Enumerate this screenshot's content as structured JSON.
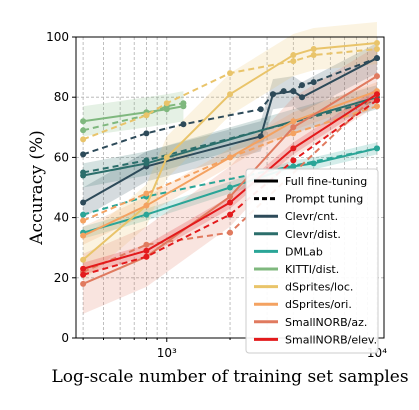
{
  "chart_data": {
    "type": "line",
    "title": "",
    "xlabel": "Log-scale number of training set samples",
    "ylabel": "Accuracy (%)",
    "x_scale": "log",
    "xlim": [
      370,
      10800
    ],
    "ylim": [
      0,
      100
    ],
    "x_ticks": [
      {
        "value": 1000,
        "label": "10³"
      },
      {
        "value": 10000,
        "label": "10⁴"
      }
    ],
    "y_ticks": [
      0,
      20,
      40,
      60,
      80,
      100
    ],
    "grid": true,
    "legend_position": "lower-right",
    "line_styles": [
      {
        "name": "Full fine-tuning",
        "dash": "solid"
      },
      {
        "name": "Prompt tuning",
        "dash": "dashed"
      }
    ],
    "datasets": [
      {
        "name": "Clevr/cnt.",
        "color": "#2d4a59",
        "full": {
          "x": [
            400,
            800,
            2800,
            3200,
            4000,
            4400,
            10000
          ],
          "y": [
            45,
            57,
            67,
            81,
            82,
            80,
            93
          ]
        },
        "prompt": {
          "x": [
            400,
            800,
            1200,
            2800,
            3200,
            3600,
            4000,
            4400,
            5000,
            10000
          ],
          "y": [
            61,
            68,
            71,
            76,
            81,
            82,
            82,
            84,
            85,
            93
          ]
        }
      },
      {
        "name": "Clevr/dist.",
        "color": "#2b6e6b",
        "full": {
          "x": [
            400,
            800,
            10000
          ],
          "y": [
            54,
            58,
            80
          ]
        },
        "prompt": {
          "x": [
            400,
            800,
            10000
          ],
          "y": [
            55,
            59,
            79
          ]
        }
      },
      {
        "name": "DMLab",
        "color": "#2aa597",
        "full": {
          "x": [
            400,
            800,
            2000,
            4000,
            5000,
            10000
          ],
          "y": [
            35,
            41,
            50,
            57,
            58,
            63
          ]
        },
        "prompt": {
          "x": [
            400,
            800,
            10000
          ],
          "y": [
            41,
            47,
            63
          ]
        }
      },
      {
        "name": "KITTI/dist.",
        "color": "#7fb87e",
        "full": {
          "x": [
            400,
            800,
            1000,
            1200
          ],
          "y": [
            72,
            75,
            76,
            77
          ]
        },
        "prompt": {
          "x": [
            400,
            800,
            1000,
            1200
          ],
          "y": [
            69,
            74,
            77,
            78
          ]
        }
      },
      {
        "name": "dSprites/loc.",
        "color": "#e9c46a",
        "full": {
          "x": [
            400,
            800,
            1000,
            2000,
            4000,
            5000,
            10000
          ],
          "y": [
            26,
            44,
            60,
            81,
            94,
            96,
            98
          ]
        },
        "prompt": {
          "x": [
            400,
            800,
            1000,
            2000,
            4000,
            5000,
            10000
          ],
          "y": [
            66,
            74,
            78,
            88,
            92,
            94,
            96
          ]
        }
      },
      {
        "name": "dSprites/ori.",
        "color": "#f4a261",
        "full": {
          "x": [
            400,
            800,
            2000,
            4000,
            10000
          ],
          "y": [
            34,
            44,
            60,
            72,
            82
          ]
        },
        "prompt": {
          "x": [
            400,
            800,
            2000,
            4000,
            10000
          ],
          "y": [
            39,
            48,
            60,
            68,
            77
          ]
        }
      },
      {
        "name": "SmallNORB/az.",
        "color": "#e07a5f",
        "full": {
          "x": [
            400,
            800,
            2000,
            4000,
            10000
          ],
          "y": [
            18,
            27,
            47,
            70,
            87
          ]
        },
        "prompt": {
          "x": [
            400,
            800,
            2000,
            10000
          ],
          "y": [
            22,
            31,
            35,
            81
          ]
        }
      },
      {
        "name": "SmallNORB/elev.",
        "color": "#e31a1c",
        "full": {
          "x": [
            400,
            800,
            2000,
            4000,
            10000
          ],
          "y": [
            23,
            29,
            45,
            63,
            81
          ]
        },
        "prompt": {
          "x": [
            400,
            800,
            2000,
            4000,
            10000
          ],
          "y": [
            21,
            27,
            41,
            59,
            79
          ]
        }
      }
    ]
  }
}
